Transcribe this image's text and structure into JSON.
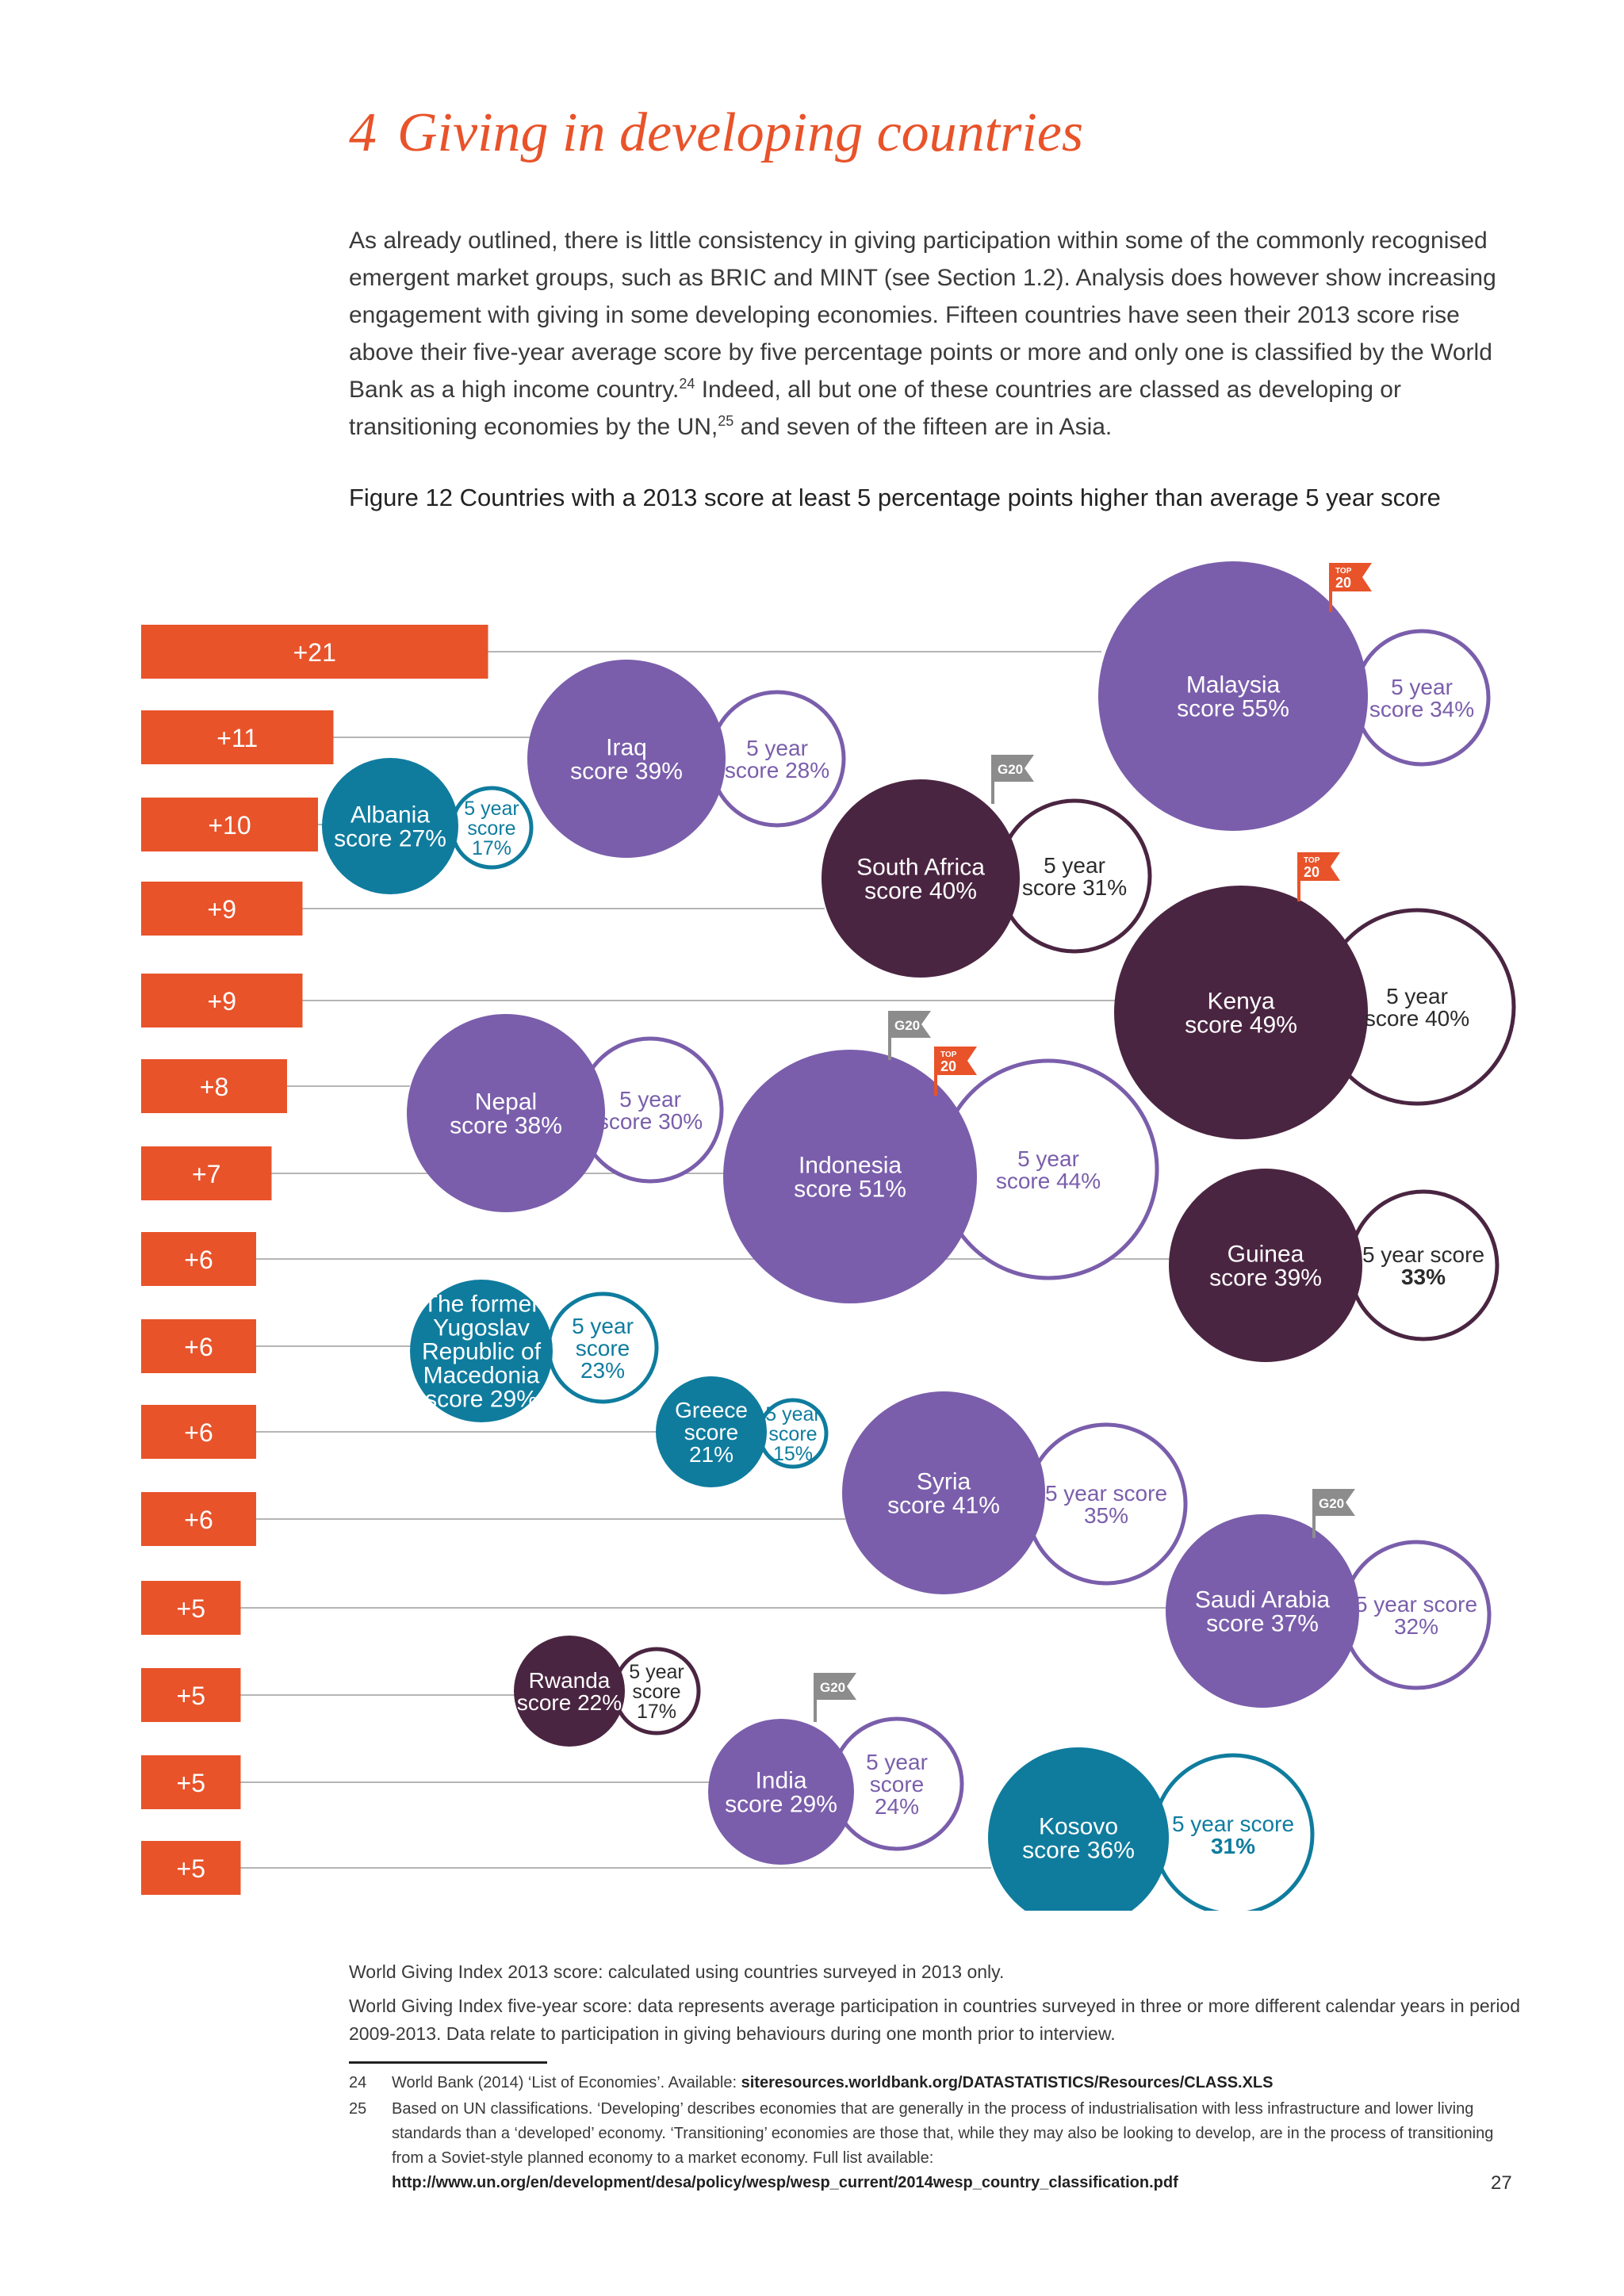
{
  "section": {
    "number": "4",
    "title": "Giving in developing countries"
  },
  "intro": {
    "part1": "As already outlined, there is little consistency in giving participation within some of the commonly recognised emergent market groups, such as BRIC and MINT (see Section 1.2). Analysis does however show increasing engagement with giving in some developing economies. Fifteen countries have seen their 2013 score rise above their five-year average score by five percentage points or more and only one is classified by the World Bank as a high income country.",
    "ref1": "24",
    "part2": " Indeed, all but one of these countries are classed as developing or transitioning economies by the UN,",
    "ref2": "25",
    "part3": " and seven of the fifteen are in Asia."
  },
  "figure_caption": "Figure 12  Countries with a 2013 score at least 5 percentage points higher than average 5 year score",
  "colors": {
    "accent": "#e8532a",
    "purple": "#7a5eab",
    "plum": "#4a2541",
    "teal": "#0f7c9e",
    "flag_gray": "#8c8c8c",
    "line_gray": "#b5b5b5"
  },
  "chart_data": {
    "type": "bubble",
    "title": "Countries with a 2013 score at least 5 percentage points higher than average 5 year score",
    "badges": {
      "top20": [
        "TOP",
        "20"
      ],
      "g20": "G20"
    },
    "bars": [
      {
        "country": "Malaysia",
        "label": "+21",
        "value": 21
      },
      {
        "country": "Iraq",
        "label": "+11",
        "value": 11
      },
      {
        "country": "Albania",
        "label": "+10",
        "value": 10
      },
      {
        "country": "South Africa",
        "label": "+9",
        "value": 9
      },
      {
        "country": "Kenya",
        "label": "+9",
        "value": 9
      },
      {
        "country": "Nepal",
        "label": "+8",
        "value": 8
      },
      {
        "country": "Indonesia",
        "label": "+7",
        "value": 7
      },
      {
        "country": "Guinea",
        "label": "+6",
        "value": 6
      },
      {
        "country": "The former Yugoslav Republic of Macedonia",
        "label": "+6",
        "value": 6
      },
      {
        "country": "Greece",
        "label": "+6",
        "value": 6
      },
      {
        "country": "Syria",
        "label": "+6",
        "value": 6
      },
      {
        "country": "Saudi Arabia",
        "label": "+5",
        "value": 5
      },
      {
        "country": "Rwanda",
        "label": "+5",
        "value": 5
      },
      {
        "country": "India",
        "label": "+5",
        "value": 5
      },
      {
        "country": "Kosovo",
        "label": "+5",
        "value": 5
      }
    ],
    "countries": [
      {
        "name": "Malaysia",
        "score": 55,
        "five_year": 34,
        "color": "purple",
        "badge": "top20",
        "main_text": [
          "Malaysia",
          "score 55%"
        ],
        "five_text": [
          "5 year",
          "score 34%"
        ]
      },
      {
        "name": "Iraq",
        "score": 39,
        "five_year": 28,
        "color": "purple",
        "badge": null,
        "main_text": [
          "Iraq",
          "score 39%"
        ],
        "five_text": [
          "5 year",
          "score 28%"
        ]
      },
      {
        "name": "Albania",
        "score": 27,
        "five_year": 17,
        "color": "teal",
        "badge": null,
        "main_text": [
          "Albania",
          "score 27%"
        ],
        "five_text": [
          "5 year",
          "score",
          "17%"
        ]
      },
      {
        "name": "South Africa",
        "score": 40,
        "five_year": 31,
        "color": "plum",
        "badge": "g20",
        "main_text": [
          "South Africa",
          "score 40%"
        ],
        "five_text": [
          "5 year",
          "score 31%"
        ]
      },
      {
        "name": "Kenya",
        "score": 49,
        "five_year": 40,
        "color": "plum",
        "badge": "top20",
        "main_text": [
          "Kenya",
          "score 49%"
        ],
        "five_text": [
          "5 year",
          "score 40%"
        ]
      },
      {
        "name": "Nepal",
        "score": 38,
        "five_year": 30,
        "color": "purple",
        "badge": null,
        "main_text": [
          "Nepal",
          "score 38%"
        ],
        "five_text": [
          "5 year",
          "score 30%"
        ]
      },
      {
        "name": "Indonesia",
        "score": 51,
        "five_year": 44,
        "color": "purple",
        "badge": "g20+top20",
        "main_text": [
          "Indonesia",
          "score 51%"
        ],
        "five_text": [
          "5 year",
          "score 44%"
        ]
      },
      {
        "name": "Guinea",
        "score": 39,
        "five_year": 33,
        "color": "plum",
        "badge": null,
        "main_text": [
          "Guinea",
          "score 39%"
        ],
        "five_text": [
          "5 year score",
          "33%"
        ]
      },
      {
        "name": "The former Yugoslav Republic of Macedonia",
        "score": 29,
        "five_year": 23,
        "color": "teal",
        "badge": null,
        "main_text": [
          "The former",
          "Yugoslav",
          "Republic of",
          "Macedonia",
          "score 29%"
        ],
        "five_text": [
          "5 year",
          "score",
          "23%"
        ]
      },
      {
        "name": "Greece",
        "score": 21,
        "five_year": 15,
        "color": "teal",
        "badge": null,
        "main_text": [
          "Greece",
          "score",
          "21%"
        ],
        "five_text": [
          "5 year",
          "score",
          "15%"
        ]
      },
      {
        "name": "Syria",
        "score": 41,
        "five_year": 35,
        "color": "purple",
        "badge": null,
        "main_text": [
          "Syria",
          "score 41%"
        ],
        "five_text": [
          "5 year score",
          "35%"
        ]
      },
      {
        "name": "Saudi Arabia",
        "score": 37,
        "five_year": 32,
        "color": "purple",
        "badge": "g20",
        "main_text": [
          "Saudi Arabia",
          "score 37%"
        ],
        "five_text": [
          "5 year score",
          "32%"
        ]
      },
      {
        "name": "Rwanda",
        "score": 22,
        "five_year": 17,
        "color": "plum",
        "badge": null,
        "main_text": [
          "Rwanda",
          "score 22%"
        ],
        "five_text": [
          "5 year",
          "score",
          "17%"
        ]
      },
      {
        "name": "India",
        "score": 29,
        "five_year": 24,
        "color": "purple",
        "badge": "g20",
        "main_text": [
          "India",
          "score 29%"
        ],
        "five_text": [
          "5 year",
          "score",
          "24%"
        ]
      },
      {
        "name": "Kosovo",
        "score": 36,
        "five_year": 31,
        "color": "teal",
        "badge": null,
        "main_text": [
          "Kosovo",
          "score 36%"
        ],
        "five_text": [
          "5 year score",
          "31%"
        ]
      }
    ]
  },
  "notes": {
    "line1": "World Giving Index 2013 score: calculated using countries surveyed in 2013 only.",
    "line2": "World Giving Index five-year score: data represents average participation in countries surveyed in three or more different calendar years in period 2009-2013. Data relate to participation in giving behaviours during one month prior to interview."
  },
  "footnotes": [
    {
      "num": "24",
      "text": "World Bank (2014) ‘List of Economies’. Available: ",
      "link": "siteresources.worldbank.org/DATASTATISTICS/Resources/CLASS.XLS"
    },
    {
      "num": "25",
      "text": "Based on UN classifications. ‘Developing’ describes economies that are generally in the process of industrialisation with less infrastructure and lower living standards than a ‘developed’ economy. ‘Transitioning’ economies are those that, while they may also be looking to develop, are in the process of transitioning from a Soviet-style planned economy to a market economy. Full list available: ",
      "link": "http://www.un.org/en/development/desa/policy/wesp/wesp_current/2014wesp_country_classification.pdf"
    }
  ],
  "page_number": "27"
}
